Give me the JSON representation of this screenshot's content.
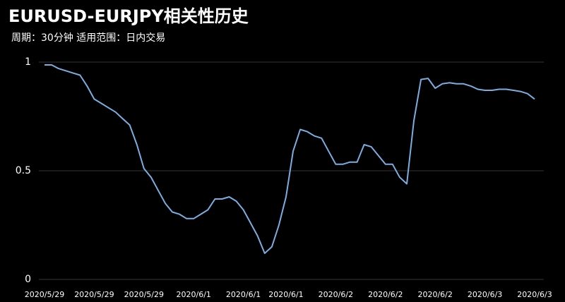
{
  "chart_data": {
    "type": "line",
    "title": "EURUSD-EURJPY相关性历史",
    "subtitle": "周期：30分钟  适用范围：日内交易",
    "categories": [
      "2020/5/29",
      null,
      null,
      null,
      null,
      null,
      null,
      "2020/5/29",
      null,
      null,
      null,
      null,
      null,
      null,
      "2020/5/29",
      null,
      null,
      null,
      null,
      null,
      null,
      "2020/6/1",
      null,
      null,
      null,
      null,
      null,
      null,
      "2020/6/1",
      null,
      null,
      null,
      null,
      null,
      "2020/6/1",
      null,
      null,
      null,
      null,
      null,
      null,
      "2020/6/2",
      null,
      null,
      null,
      null,
      null,
      null,
      "2020/6/2",
      null,
      null,
      null,
      null,
      null,
      null,
      "2020/6/2",
      null,
      null,
      null,
      null,
      null,
      null,
      "2020/6/3",
      null,
      null,
      null,
      null,
      null,
      null,
      "2020/6/3"
    ],
    "series": [
      {
        "color": "#7aaee0",
        "values": [
          0.987,
          0.987,
          0.97,
          0.96,
          0.95,
          0.94,
          0.89,
          0.83,
          0.81,
          0.79,
          0.77,
          0.74,
          0.71,
          0.62,
          0.51,
          0.47,
          0.41,
          0.35,
          0.31,
          0.3,
          0.28,
          0.28,
          0.3,
          0.32,
          0.37,
          0.37,
          0.38,
          0.36,
          0.32,
          0.26,
          0.2,
          0.12,
          0.15,
          0.25,
          0.38,
          0.59,
          0.69,
          0.68,
          0.66,
          0.65,
          0.59,
          0.53,
          0.53,
          0.54,
          0.54,
          0.62,
          0.61,
          0.57,
          0.53,
          0.53,
          0.47,
          0.44,
          0.73,
          0.92,
          0.925,
          0.88,
          0.9,
          0.905,
          0.9,
          0.9,
          0.89,
          0.875,
          0.87,
          0.87,
          0.875,
          0.875,
          0.87,
          0.865,
          0.855,
          0.83
        ]
      }
    ],
    "ylim": [
      0,
      1
    ],
    "yticks": [
      0,
      0.5,
      1
    ],
    "grid": true
  }
}
